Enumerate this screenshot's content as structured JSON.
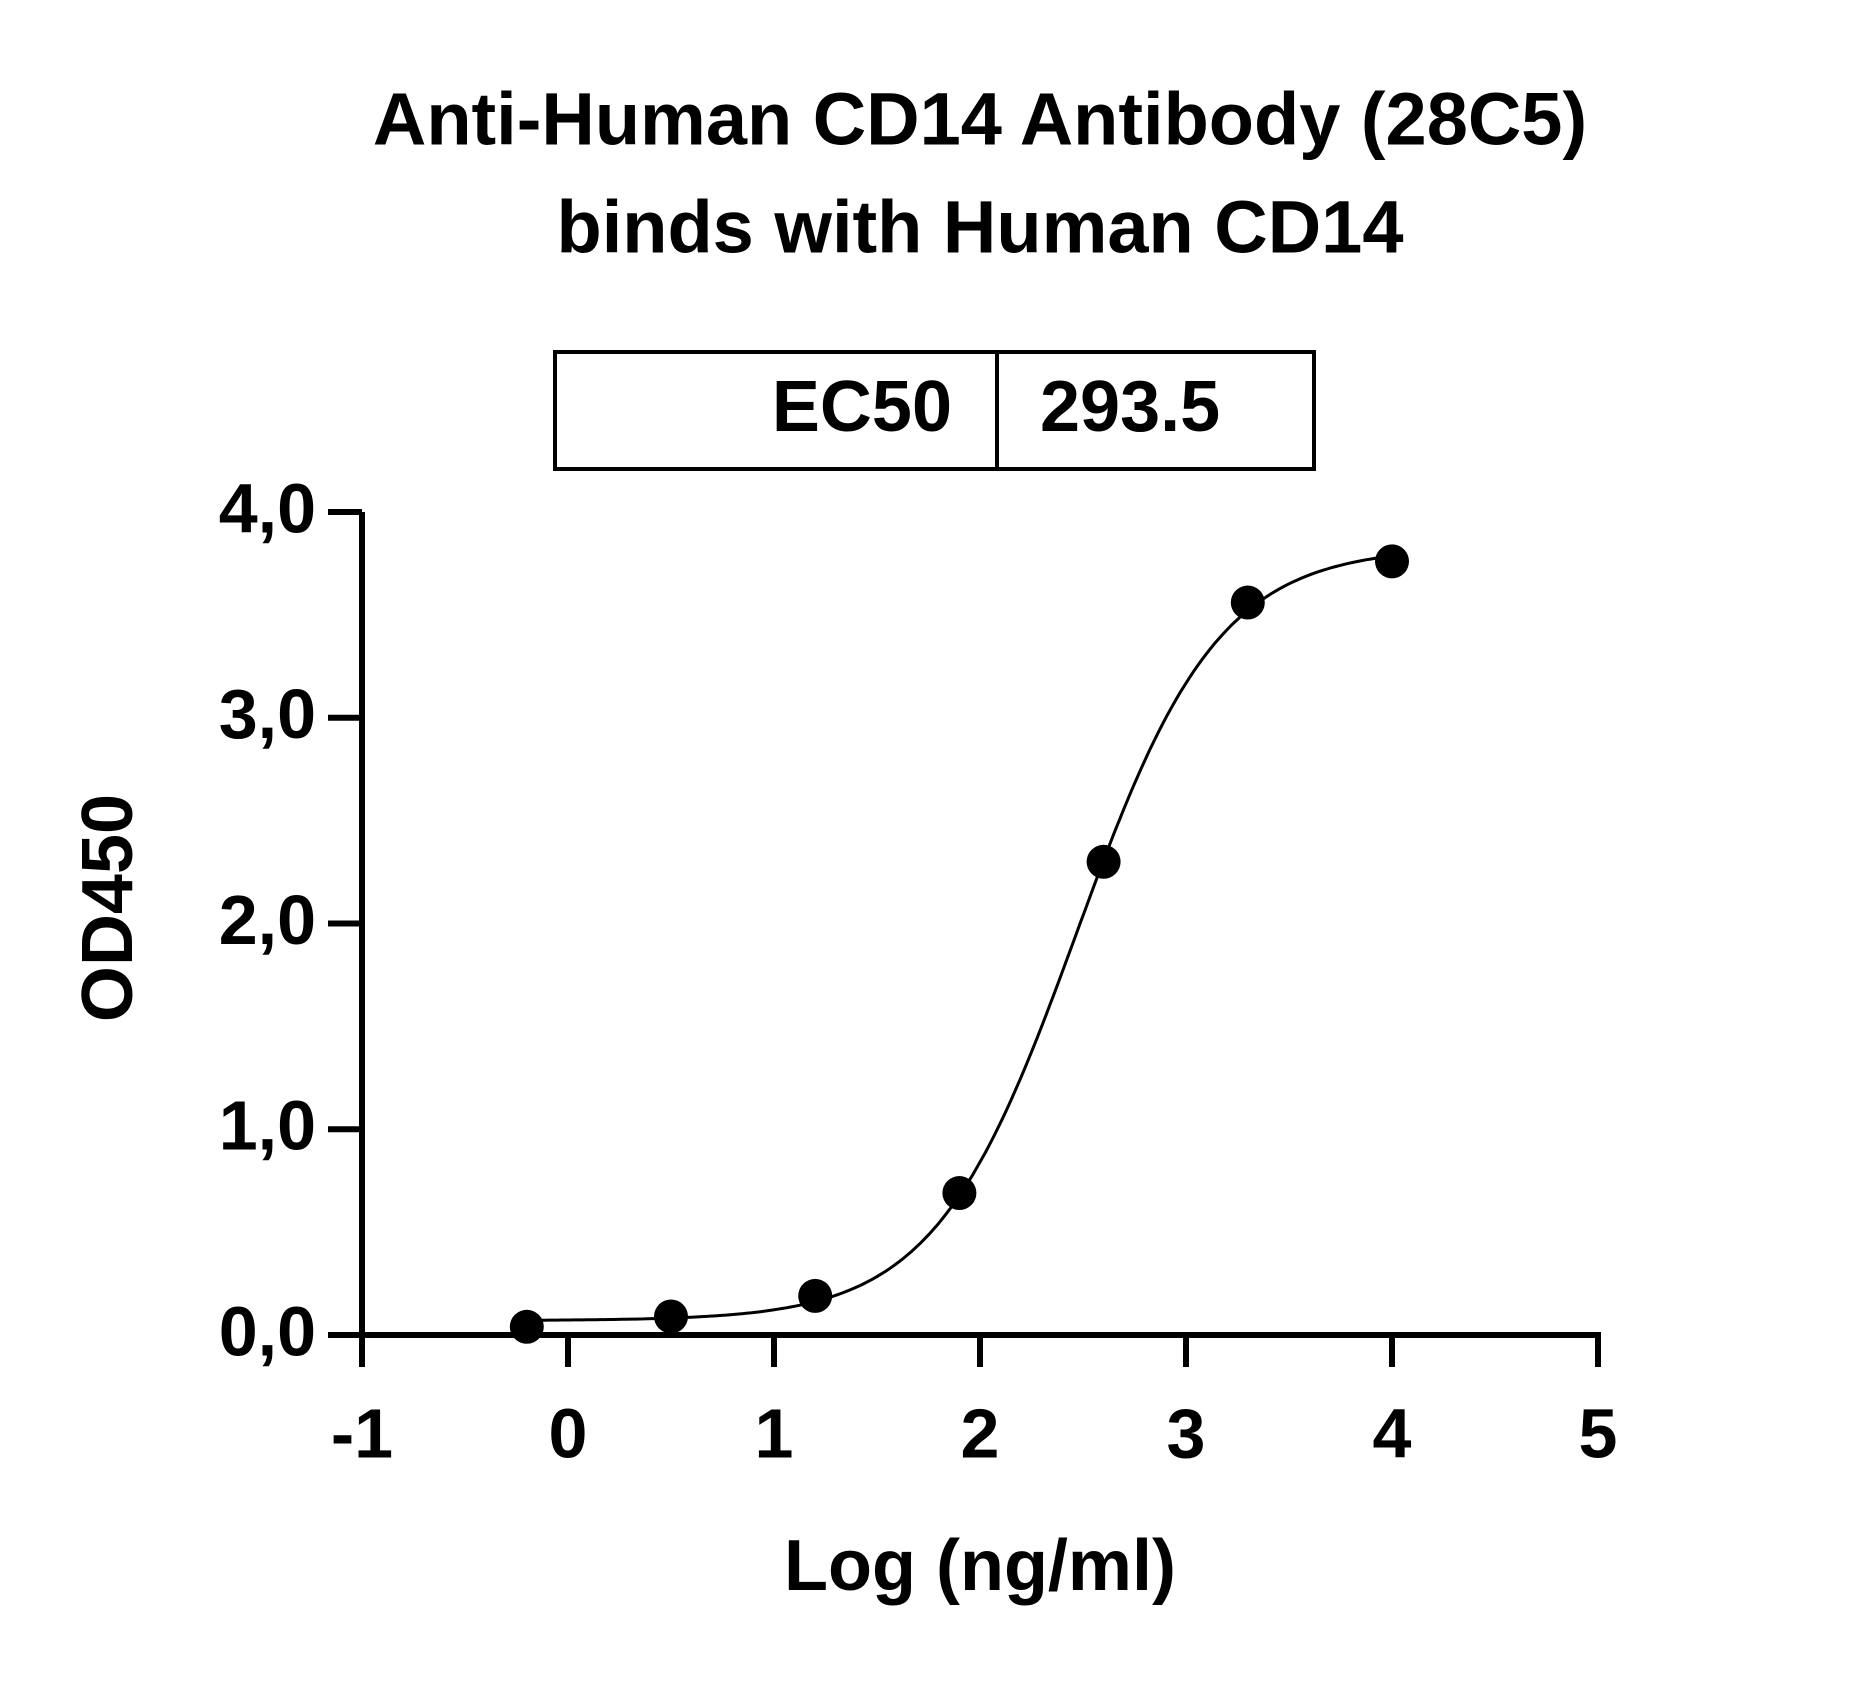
{
  "chart_data": {
    "type": "scatter",
    "title": [
      "Anti-Human CD14 Antibody (28C5)",
      "binds with Human CD14"
    ],
    "x_label": "Log (ng/ml)",
    "y_label": "OD450",
    "ec50_label": "EC50",
    "ec50_value": 293.5,
    "x": [
      -0.2,
      0.5,
      1.2,
      1.9,
      2.6,
      3.3,
      4.0
    ],
    "series": [
      {
        "color": "#000000",
        "values": [
          0.04,
          0.09,
          0.19,
          0.69,
          2.3,
          3.56,
          3.76
        ]
      }
    ],
    "xlim": [
      -1,
      5
    ],
    "ylim": [
      0,
      4
    ],
    "xticks": [
      -1,
      0,
      1,
      2,
      3,
      4,
      5
    ],
    "yticks": [
      {
        "value": 0,
        "label": "0,0"
      },
      {
        "value": 1,
        "label": "1,0"
      },
      {
        "value": 2,
        "label": "2,0"
      },
      {
        "value": 3,
        "label": "3,0"
      },
      {
        "value": 4,
        "label": "4,0"
      }
    ],
    "fit_curve": true
  }
}
